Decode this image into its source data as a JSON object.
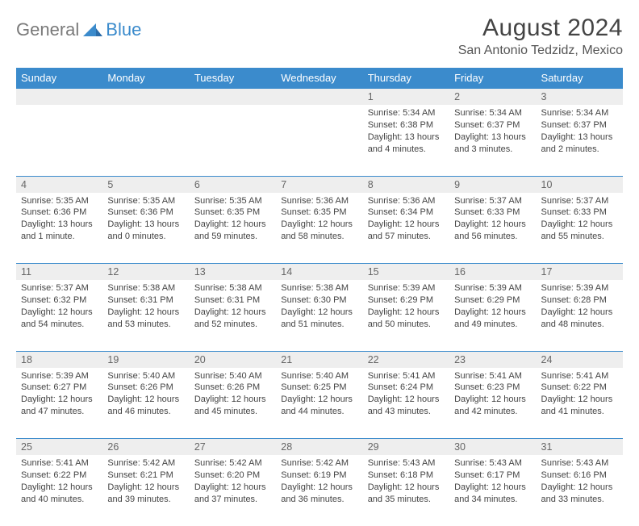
{
  "logo": {
    "gray": "General",
    "blue": "Blue"
  },
  "title": "August 2024",
  "location": "San Antonio Tedzidz, Mexico",
  "colors": {
    "header_bg": "#3b8bcc",
    "header_text": "#ffffff",
    "daynum_bg": "#eeeeee",
    "border": "#3b8bcc",
    "body_text": "#444444"
  },
  "weekdays": [
    "Sunday",
    "Monday",
    "Tuesday",
    "Wednesday",
    "Thursday",
    "Friday",
    "Saturday"
  ],
  "weeks": [
    [
      null,
      null,
      null,
      null,
      {
        "n": "1",
        "sr": "5:34 AM",
        "ss": "6:38 PM",
        "dl": "13 hours and 4 minutes."
      },
      {
        "n": "2",
        "sr": "5:34 AM",
        "ss": "6:37 PM",
        "dl": "13 hours and 3 minutes."
      },
      {
        "n": "3",
        "sr": "5:34 AM",
        "ss": "6:37 PM",
        "dl": "13 hours and 2 minutes."
      }
    ],
    [
      {
        "n": "4",
        "sr": "5:35 AM",
        "ss": "6:36 PM",
        "dl": "13 hours and 1 minute."
      },
      {
        "n": "5",
        "sr": "5:35 AM",
        "ss": "6:36 PM",
        "dl": "13 hours and 0 minutes."
      },
      {
        "n": "6",
        "sr": "5:35 AM",
        "ss": "6:35 PM",
        "dl": "12 hours and 59 minutes."
      },
      {
        "n": "7",
        "sr": "5:36 AM",
        "ss": "6:35 PM",
        "dl": "12 hours and 58 minutes."
      },
      {
        "n": "8",
        "sr": "5:36 AM",
        "ss": "6:34 PM",
        "dl": "12 hours and 57 minutes."
      },
      {
        "n": "9",
        "sr": "5:37 AM",
        "ss": "6:33 PM",
        "dl": "12 hours and 56 minutes."
      },
      {
        "n": "10",
        "sr": "5:37 AM",
        "ss": "6:33 PM",
        "dl": "12 hours and 55 minutes."
      }
    ],
    [
      {
        "n": "11",
        "sr": "5:37 AM",
        "ss": "6:32 PM",
        "dl": "12 hours and 54 minutes."
      },
      {
        "n": "12",
        "sr": "5:38 AM",
        "ss": "6:31 PM",
        "dl": "12 hours and 53 minutes."
      },
      {
        "n": "13",
        "sr": "5:38 AM",
        "ss": "6:31 PM",
        "dl": "12 hours and 52 minutes."
      },
      {
        "n": "14",
        "sr": "5:38 AM",
        "ss": "6:30 PM",
        "dl": "12 hours and 51 minutes."
      },
      {
        "n": "15",
        "sr": "5:39 AM",
        "ss": "6:29 PM",
        "dl": "12 hours and 50 minutes."
      },
      {
        "n": "16",
        "sr": "5:39 AM",
        "ss": "6:29 PM",
        "dl": "12 hours and 49 minutes."
      },
      {
        "n": "17",
        "sr": "5:39 AM",
        "ss": "6:28 PM",
        "dl": "12 hours and 48 minutes."
      }
    ],
    [
      {
        "n": "18",
        "sr": "5:39 AM",
        "ss": "6:27 PM",
        "dl": "12 hours and 47 minutes."
      },
      {
        "n": "19",
        "sr": "5:40 AM",
        "ss": "6:26 PM",
        "dl": "12 hours and 46 minutes."
      },
      {
        "n": "20",
        "sr": "5:40 AM",
        "ss": "6:26 PM",
        "dl": "12 hours and 45 minutes."
      },
      {
        "n": "21",
        "sr": "5:40 AM",
        "ss": "6:25 PM",
        "dl": "12 hours and 44 minutes."
      },
      {
        "n": "22",
        "sr": "5:41 AM",
        "ss": "6:24 PM",
        "dl": "12 hours and 43 minutes."
      },
      {
        "n": "23",
        "sr": "5:41 AM",
        "ss": "6:23 PM",
        "dl": "12 hours and 42 minutes."
      },
      {
        "n": "24",
        "sr": "5:41 AM",
        "ss": "6:22 PM",
        "dl": "12 hours and 41 minutes."
      }
    ],
    [
      {
        "n": "25",
        "sr": "5:41 AM",
        "ss": "6:22 PM",
        "dl": "12 hours and 40 minutes."
      },
      {
        "n": "26",
        "sr": "5:42 AM",
        "ss": "6:21 PM",
        "dl": "12 hours and 39 minutes."
      },
      {
        "n": "27",
        "sr": "5:42 AM",
        "ss": "6:20 PM",
        "dl": "12 hours and 37 minutes."
      },
      {
        "n": "28",
        "sr": "5:42 AM",
        "ss": "6:19 PM",
        "dl": "12 hours and 36 minutes."
      },
      {
        "n": "29",
        "sr": "5:43 AM",
        "ss": "6:18 PM",
        "dl": "12 hours and 35 minutes."
      },
      {
        "n": "30",
        "sr": "5:43 AM",
        "ss": "6:17 PM",
        "dl": "12 hours and 34 minutes."
      },
      {
        "n": "31",
        "sr": "5:43 AM",
        "ss": "6:16 PM",
        "dl": "12 hours and 33 minutes."
      }
    ]
  ],
  "labels": {
    "sunrise": "Sunrise: ",
    "sunset": "Sunset: ",
    "daylight": "Daylight: "
  }
}
